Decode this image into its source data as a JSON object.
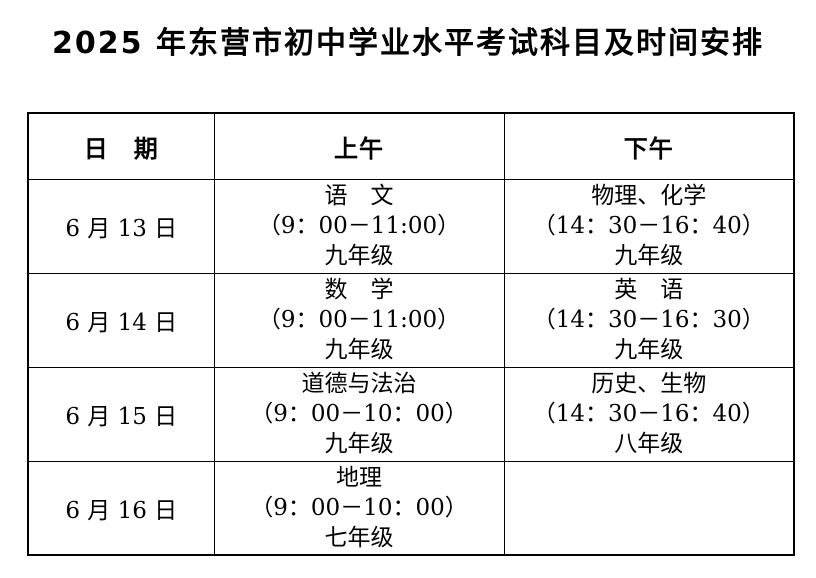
{
  "page": {
    "title": "2025 年东营市初中学业水平考试科目及时间安排",
    "background_color": "#ffffff",
    "text_color": "#000000",
    "border_color": "#000000"
  },
  "table": {
    "headers": {
      "date": "日　期",
      "morning": "上午",
      "afternoon": "下午"
    },
    "rows": [
      {
        "date": "6 月 13 日",
        "morning": {
          "subject": "语　文",
          "time": "（9：00－11:00）",
          "grade": "九年级"
        },
        "afternoon": {
          "subject": "物理、化学",
          "time": "（14：30－16：40）",
          "grade": "九年级"
        }
      },
      {
        "date": "6 月 14 日",
        "morning": {
          "subject": "数　学",
          "time": "（9：00－11:00）",
          "grade": "九年级"
        },
        "afternoon": {
          "subject": "英　语",
          "time": "（14：30－16：30）",
          "grade": "九年级"
        }
      },
      {
        "date": "6 月 15 日",
        "morning": {
          "subject": "道德与法治",
          "time": "（9：00－10：00）",
          "grade": "九年级"
        },
        "afternoon": {
          "subject": "历史、生物",
          "time": "（14：30－16：40）",
          "grade": "八年级"
        }
      },
      {
        "date": "6 月 16 日",
        "morning": {
          "subject": "地理",
          "time": "（9：00－10：00）",
          "grade": "七年级"
        },
        "afternoon": {
          "subject": "",
          "time": "",
          "grade": ""
        }
      }
    ]
  }
}
